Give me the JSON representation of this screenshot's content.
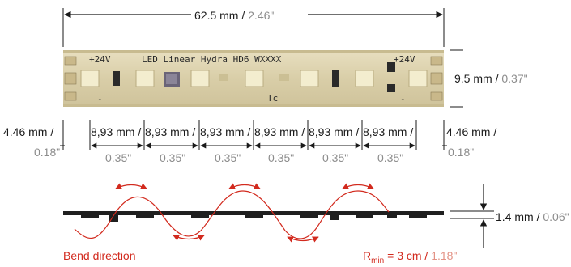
{
  "dimensions": {
    "total_length": {
      "metric": "62.5 mm",
      "separator": " / ",
      "imperial": "2.46\""
    },
    "width": {
      "metric": "9.5 mm",
      "separator": " / ",
      "imperial": "0.37\""
    },
    "edge_margin": {
      "metric": "4.46 mm /",
      "imperial": "0.18\""
    },
    "pitch": {
      "metric": "8,93 mm /",
      "imperial": "0.35\"",
      "count": 6
    },
    "thickness": {
      "metric": "1.4 mm",
      "separator": " / ",
      "imperial": "0.06\""
    }
  },
  "strip": {
    "plus_left": "+24V",
    "model": "LED Linear Hydra HD6 WXXXX",
    "plus_right": "+24V",
    "minus_left": "-",
    "minus_right": "-",
    "tc": "Tc"
  },
  "bend": {
    "direction_label": "Bend direction",
    "radius_prefix": "R",
    "radius_sub": "min",
    "radius_metric": " = 3 cm",
    "radius_sep": " / ",
    "radius_imperial": "1.18\""
  },
  "colors": {
    "accent": "#d22a1e",
    "accent_light": "#e39386",
    "strip_base": "#ddd3b1",
    "led": "#f3edcf",
    "dimension_line": "#1a1a1a"
  }
}
